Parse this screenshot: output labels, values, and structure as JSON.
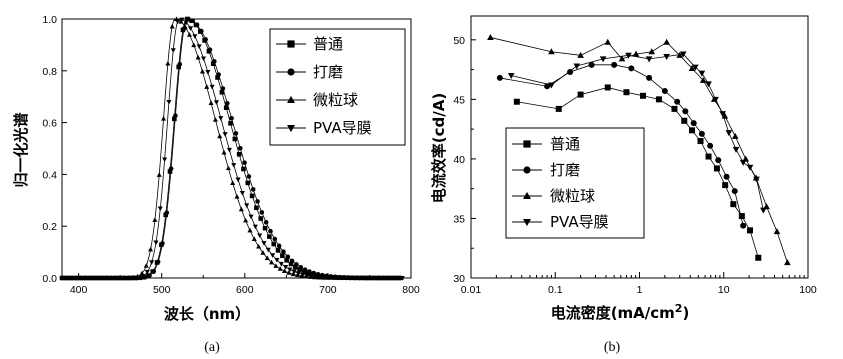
{
  "chart_data": [
    {
      "type": "scatter",
      "caption": "(a)",
      "xlabel": "波长（nm）",
      "ylabel": "归一化光谱",
      "xlim": [
        380,
        800
      ],
      "ylim": [
        0,
        1.0
      ],
      "x_ticks": [
        "400",
        "500",
        "600",
        "700",
        "800"
      ],
      "y_ticks": [
        "0.0",
        "0.2",
        "0.4",
        "0.6",
        "0.8",
        "1.0"
      ],
      "legend_position": "top-right",
      "series": [
        {
          "name": "普通",
          "marker": "square",
          "peak": 530,
          "rise": 15,
          "fall": 52
        },
        {
          "name": "打磨",
          "marker": "circle",
          "peak": 531,
          "rise": 15,
          "fall": 54
        },
        {
          "name": "微粒球",
          "marker": "triangle-up",
          "peak": 516,
          "rise": 14,
          "fall": 49
        },
        {
          "name": "PVA导膜",
          "marker": "triangle-down",
          "peak": 521,
          "rise": 14,
          "fall": 51
        }
      ]
    },
    {
      "type": "line",
      "caption": "(b)",
      "xlabel": "电流密度(mA/cm2)",
      "xlabel_main": "电流密度(mA/cm",
      "xlabel_sup": "2",
      "xlabel_end": ")",
      "ylabel": "电流效率(cd/A)",
      "xscale": "log",
      "xlim": [
        0.01,
        100
      ],
      "ylim": [
        30,
        52
      ],
      "x_ticks": [
        "0.01",
        "0.1",
        "1",
        "10",
        "100"
      ],
      "y_ticks": [
        "30",
        "35",
        "40",
        "45",
        "50"
      ],
      "legend_position": "bottom-left",
      "series": [
        {
          "name": "普通",
          "marker": "square",
          "x": [
            0.035,
            0.11,
            0.2,
            0.42,
            0.7,
            1.1,
            1.7,
            2.6,
            3.4,
            4.2,
            5.3,
            6.6,
            8.3,
            10.4,
            13.0,
            16.4,
            20.5,
            25.7
          ],
          "y": [
            44.8,
            44.2,
            45.4,
            46.0,
            45.6,
            45.3,
            45.0,
            44.2,
            43.2,
            42.4,
            41.5,
            40.2,
            39.2,
            37.8,
            36.2,
            35.2,
            34.0,
            31.7
          ]
        },
        {
          "name": "打磨",
          "marker": "circle",
          "x": [
            0.022,
            0.08,
            0.15,
            0.27,
            0.5,
            0.8,
            1.3,
            2.0,
            2.8,
            3.5,
            4.4,
            5.5,
            6.9,
            8.6,
            10.8,
            13.5,
            17.0
          ],
          "y": [
            46.8,
            46.1,
            47.3,
            47.9,
            47.9,
            47.6,
            46.8,
            45.7,
            44.8,
            44.0,
            43.0,
            42.1,
            41.1,
            39.9,
            38.5,
            37.3,
            34.4
          ]
        },
        {
          "name": "微粒球",
          "marker": "triangle-up",
          "x": [
            0.017,
            0.09,
            0.2,
            0.42,
            0.62,
            0.91,
            1.4,
            2.1,
            3.0,
            4.2,
            5.7,
            7.7,
            10.3,
            13.7,
            18.2,
            24.2,
            32.2,
            42.8,
            56.9
          ],
          "y": [
            50.2,
            49.0,
            48.7,
            49.8,
            48.4,
            48.8,
            49.0,
            49.8,
            48.7,
            47.6,
            46.6,
            45.0,
            43.6,
            41.9,
            40.0,
            38.4,
            36.0,
            33.9,
            31.3
          ]
        },
        {
          "name": "PVA导膜",
          "marker": "triangle-down",
          "x": [
            0.03,
            0.09,
            0.18,
            0.37,
            0.74,
            1.3,
            2.1,
            3.3,
            4.6,
            5.5,
            6.6,
            8.0,
            9.7,
            11.5,
            14.0,
            17.0,
            20.5,
            24.5,
            29.5
          ],
          "y": [
            47.0,
            46.2,
            47.8,
            48.4,
            48.7,
            48.4,
            48.6,
            48.8,
            47.7,
            47.2,
            46.3,
            45.0,
            43.8,
            42.2,
            40.8,
            39.7,
            39.3,
            38.3,
            35.7
          ]
        }
      ]
    }
  ]
}
